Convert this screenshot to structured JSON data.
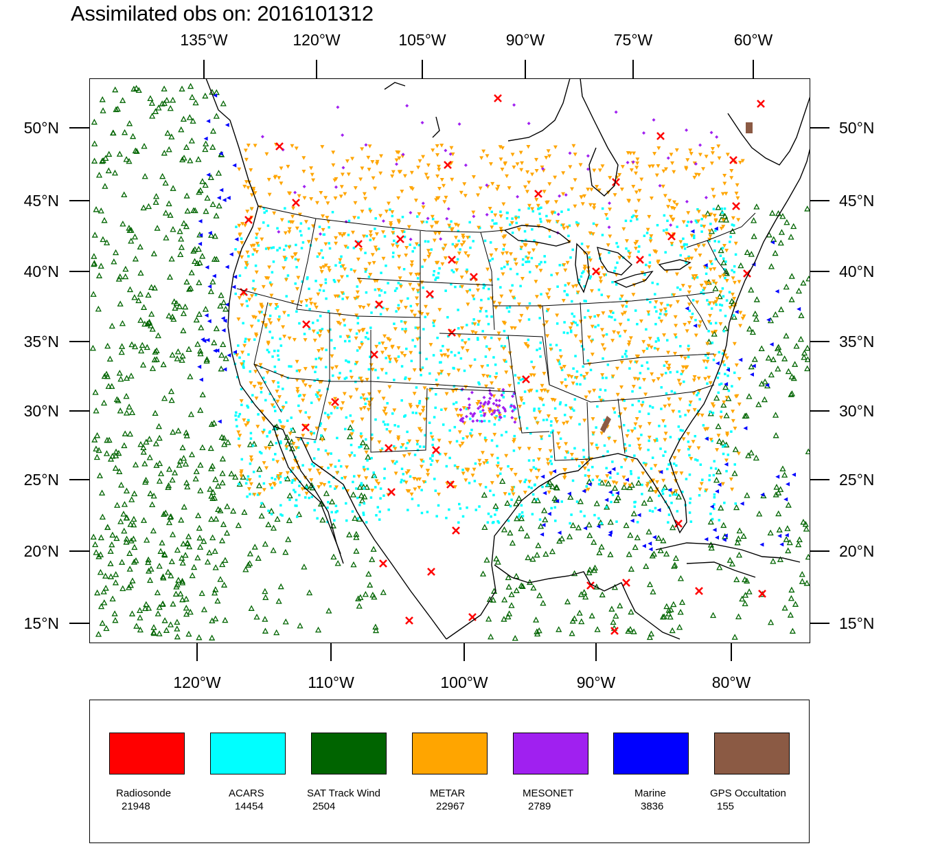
{
  "title": "Assimilated obs on: 2016101312",
  "top_lon_labels": [
    "135°W",
    "120°W",
    "105°W",
    "90°W",
    "75°W",
    "60°W"
  ],
  "bottom_lon_labels": [
    "120°W",
    "110°W",
    "100°W",
    "90°W",
    "80°W"
  ],
  "lat_labels": [
    "50°N",
    "45°N",
    "40°N",
    "35°N",
    "30°N",
    "25°N",
    "20°N",
    "15°N"
  ],
  "legend": [
    {
      "name": "Radiosonde",
      "count": "21948",
      "color": "#ff0000",
      "icon": "x-marker-icon"
    },
    {
      "name": "ACARS",
      "count": "14454",
      "color": "#00ffff",
      "icon": "dot-marker-icon"
    },
    {
      "name": "SAT Track Wind",
      "count": "2504",
      "color": "#006400",
      "icon": "triangle-up-marker-icon"
    },
    {
      "name": "METAR",
      "count": "22967",
      "color": "#ffa500",
      "icon": "triangle-down-marker-icon"
    },
    {
      "name": "MESONET",
      "count": "2789",
      "color": "#a020f0",
      "icon": "diamond-marker-icon"
    },
    {
      "name": "Marine",
      "count": "3836",
      "color": "#0000ff",
      "icon": "triangle-left-marker-icon"
    },
    {
      "name": "GPS Occultation",
      "count": "155",
      "color": "#8b5a44",
      "icon": "parallelogram-marker-icon"
    }
  ]
}
